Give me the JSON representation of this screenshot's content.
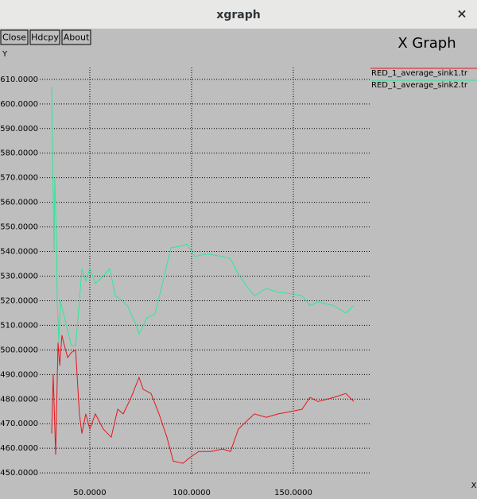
{
  "window": {
    "title": "xgraph",
    "close_icon": "×",
    "buttons": [
      "Close",
      "Hdcpy",
      "About"
    ]
  },
  "chart_data": {
    "type": "line",
    "title": "X Graph",
    "y_label": "Y",
    "x_label": "X",
    "xlim": [
      25.4,
      187.5
    ],
    "ylim": [
      449.4,
      614.8
    ],
    "grid": true,
    "legend": "right",
    "xticks": [
      {
        "value": 50,
        "label": "50.0000"
      },
      {
        "value": 100,
        "label": "100.0000"
      },
      {
        "value": 150,
        "label": "150.0000"
      }
    ],
    "yticks": [
      {
        "value": 450,
        "label": "450.0000"
      },
      {
        "value": 460,
        "label": "460.0000"
      },
      {
        "value": 470,
        "label": "470.0000"
      },
      {
        "value": 480,
        "label": "480.0000"
      },
      {
        "value": 490,
        "label": "490.0000"
      },
      {
        "value": 500,
        "label": "500.0000"
      },
      {
        "value": 510,
        "label": "510.0000"
      },
      {
        "value": 520,
        "label": "520.0000"
      },
      {
        "value": 530,
        "label": "530.0000"
      },
      {
        "value": 540,
        "label": "540.0000"
      },
      {
        "value": 550,
        "label": "550.0000"
      },
      {
        "value": 560,
        "label": "560.0000"
      },
      {
        "value": 570,
        "label": "570.0000"
      },
      {
        "value": 580,
        "label": "580.0000"
      },
      {
        "value": 590,
        "label": "590.0000"
      },
      {
        "value": 600,
        "label": "600.0000"
      },
      {
        "value": 610,
        "label": "610.0000"
      }
    ],
    "series": [
      {
        "name": "RED_1_average_sink1.tr",
        "color": "#e8141c",
        "x": [
          31.25,
          32.0,
          33.2,
          34.4,
          35.2,
          36.3,
          37.1,
          39.1,
          41.0,
          43.0,
          44.9,
          46.1,
          48.0,
          50,
          52.7,
          56.6,
          60.5,
          63.7,
          66.4,
          70.3,
          74.2,
          76.2,
          80.1,
          84.0,
          87.9,
          91.0,
          95.7,
          99.6,
          103.5,
          109.4,
          115.2,
          119.1,
          123.0,
          127.0,
          130.9,
          136.7,
          142.6,
          148.4,
          154.3,
          158.2,
          162.1,
          169.9,
          175.8,
          179.7
        ],
        "values": [
          466,
          490,
          457.4,
          503,
          493.6,
          506,
          503,
          496.9,
          499,
          500,
          474,
          466,
          474,
          467.8,
          474,
          467.8,
          464.5,
          475.9,
          474,
          480.7,
          488.8,
          484,
          482.3,
          474,
          464.5,
          454.8,
          453.9,
          456.5,
          458.7,
          458.7,
          459.7,
          458.7,
          467.8,
          471,
          474,
          472.6,
          474,
          474.9,
          475.9,
          480.7,
          479,
          480.7,
          482.3,
          479
        ]
      },
      {
        "name": "RED_1_average_sink2.tr",
        "color": "#2ee89a",
        "x": [
          31.25,
          32.4,
          32.8,
          33.6,
          34.0,
          34.8,
          35.5,
          39.1,
          41.0,
          43.0,
          44.9,
          46.1,
          48.0,
          50,
          52.7,
          56.6,
          59.8,
          62.5,
          64.5,
          68.4,
          72.3,
          74.2,
          78.1,
          82.0,
          85.9,
          89.8,
          93.8,
          97.7,
          101.6,
          107.4,
          115.2,
          119.1,
          123.0,
          127.0,
          130.9,
          136.7,
          142.6,
          150.4,
          154.3,
          158.2,
          162.1,
          169.9,
          175.8,
          179.7
        ],
        "values": [
          607,
          540,
          570,
          545,
          520,
          503,
          520,
          508,
          501.7,
          501.7,
          520,
          533,
          528,
          533,
          527,
          530,
          533,
          522,
          521,
          518,
          511,
          506.5,
          513,
          514.6,
          527.6,
          541.5,
          542,
          543,
          538,
          539,
          538,
          537,
          530.8,
          526,
          522,
          525,
          523.4,
          522.7,
          522,
          518,
          519.5,
          518,
          515,
          518
        ]
      }
    ]
  }
}
